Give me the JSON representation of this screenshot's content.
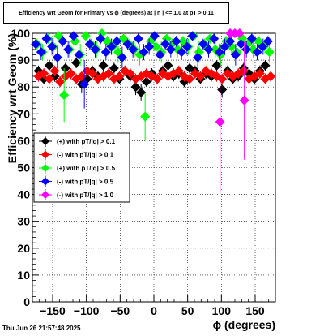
{
  "title": "Efficiency wrt Geom for Primary vs ϕ (degrees) at | η | <= 1.0 at pT > 0.11",
  "date_stamp": "Thu Jun 26 21:57:48 2025",
  "chart_data": {
    "type": "scatter",
    "xlabel": "ϕ (degrees)",
    "ylabel": "Efficiency wrt Geom (%)",
    "xlim": [
      -180,
      180
    ],
    "ylim": [
      0,
      100
    ],
    "xticks": [
      -150,
      -100,
      -50,
      0,
      50,
      100,
      150
    ],
    "yticks": [
      0,
      10,
      20,
      30,
      40,
      50,
      60,
      70,
      80,
      90,
      100
    ],
    "grid": true,
    "legend_position": "center-left",
    "series": [
      {
        "name": "(+) with pT/|q| > 0.1",
        "color": "#000000",
        "x": [
          -171,
          -163,
          -155,
          -147,
          -139,
          -131,
          -123,
          -115,
          -107,
          -99,
          -91,
          -83,
          -75,
          -67,
          -59,
          -51,
          -43,
          -35,
          -27,
          -19,
          -11,
          -3,
          5,
          13,
          21,
          29,
          37,
          45,
          53,
          61,
          69,
          77,
          85,
          93,
          101,
          109,
          117,
          125,
          133,
          141,
          149,
          157,
          165,
          173
        ],
        "y": [
          86,
          83,
          88,
          84,
          82,
          87,
          85,
          89,
          81,
          83,
          86,
          84,
          88,
          85,
          87,
          83,
          86,
          84,
          80,
          78,
          82,
          85,
          83,
          86,
          88,
          84,
          85,
          82,
          87,
          86,
          83,
          85,
          84,
          88,
          79,
          86,
          83,
          84,
          87,
          85,
          83,
          86,
          88,
          84
        ],
        "err": [
          2,
          2,
          2,
          2,
          2,
          2,
          2,
          2,
          3,
          4,
          2,
          2,
          2,
          2,
          2,
          2,
          2,
          2,
          3,
          3,
          2,
          2,
          2,
          2,
          2,
          2,
          2,
          2,
          2,
          2,
          2,
          2,
          2,
          2,
          3,
          2,
          2,
          2,
          2,
          2,
          2,
          2,
          2,
          2
        ]
      },
      {
        "name": "(-) with pT/|q| > 0.1",
        "color": "#ff0000",
        "x": [
          -171,
          -163,
          -155,
          -147,
          -139,
          -131,
          -123,
          -115,
          -107,
          -99,
          -91,
          -83,
          -75,
          -67,
          -59,
          -51,
          -43,
          -35,
          -27,
          -19,
          -11,
          -3,
          5,
          13,
          21,
          29,
          37,
          45,
          53,
          61,
          69,
          77,
          85,
          93,
          101,
          109,
          117,
          125,
          133,
          141,
          149,
          157,
          165,
          173
        ],
        "y": [
          84,
          85,
          83,
          86,
          82,
          84,
          85,
          83,
          84,
          86,
          85,
          83,
          84,
          85,
          83,
          84,
          86,
          85,
          83,
          84,
          85,
          84,
          83,
          85,
          84,
          85,
          86,
          84,
          83,
          85,
          84,
          86,
          85,
          84,
          83,
          85,
          84,
          85,
          86,
          83,
          84,
          85,
          83,
          84
        ],
        "err": [
          2,
          2,
          2,
          2,
          2,
          2,
          2,
          2,
          2,
          2,
          2,
          2,
          2,
          2,
          2,
          2,
          2,
          2,
          2,
          2,
          2,
          2,
          2,
          2,
          2,
          2,
          2,
          2,
          2,
          2,
          2,
          2,
          2,
          2,
          2,
          2,
          2,
          2,
          2,
          2,
          2,
          2,
          2,
          2
        ]
      },
      {
        "name": "(+) with pT/|q| > 0.5",
        "color": "#00ff00",
        "x": [
          -173,
          -165,
          -157,
          -149,
          -141,
          -133,
          -125,
          -117,
          -109,
          -101,
          -93,
          -85,
          -77,
          -69,
          -61,
          -53,
          -45,
          -37,
          -29,
          -21,
          -13,
          -5,
          3,
          11,
          19,
          27,
          35,
          43,
          51,
          59,
          67,
          75,
          83,
          91,
          99,
          107,
          115,
          123,
          131,
          139,
          147,
          155,
          163,
          171
        ],
        "y": [
          96,
          93,
          98,
          95,
          99,
          77,
          94,
          97,
          92,
          99,
          96,
          94,
          100,
          97,
          95,
          93,
          98,
          96,
          94,
          92,
          69,
          97,
          95,
          93,
          98,
          96,
          94,
          97,
          95,
          99,
          93,
          96,
          98,
          94,
          92,
          97,
          95,
          93,
          98,
          96,
          94,
          97,
          95,
          93
        ],
        "err": [
          2,
          3,
          2,
          3,
          1,
          10,
          3,
          2,
          4,
          1,
          2,
          3,
          0,
          2,
          3,
          4,
          2,
          2,
          3,
          4,
          9,
          2,
          3,
          4,
          2,
          2,
          3,
          2,
          3,
          1,
          4,
          2,
          2,
          3,
          4,
          2,
          3,
          4,
          2,
          2,
          3,
          2,
          3,
          4
        ]
      },
      {
        "name": "(-) with pT/|q| > 0.5",
        "color": "#0000ff",
        "x": [
          -175,
          -167,
          -159,
          -151,
          -143,
          -135,
          -127,
          -119,
          -111,
          -103,
          -95,
          -87,
          -79,
          -71,
          -63,
          -55,
          -47,
          -39,
          -31,
          -23,
          -15,
          -7,
          1,
          9,
          17,
          25,
          33,
          41,
          49,
          57,
          65,
          73,
          81,
          89,
          97,
          105,
          113,
          121,
          129,
          137,
          145,
          153,
          161,
          169
        ],
        "y": [
          96,
          93,
          98,
          95,
          91,
          97,
          94,
          99,
          92,
          81,
          96,
          94,
          98,
          93,
          95,
          97,
          91,
          96,
          94,
          98,
          93,
          95,
          99,
          92,
          96,
          94,
          97,
          93,
          95,
          99,
          91,
          96,
          94,
          98,
          93,
          95,
          97,
          92,
          96,
          94,
          98,
          93,
          95,
          97
        ],
        "err": [
          2,
          3,
          2,
          3,
          4,
          2,
          3,
          1,
          4,
          9,
          2,
          3,
          2,
          3,
          3,
          2,
          4,
          2,
          3,
          2,
          3,
          3,
          1,
          4,
          2,
          3,
          2,
          3,
          3,
          1,
          4,
          2,
          3,
          2,
          3,
          3,
          2,
          4,
          2,
          3,
          2,
          3,
          3,
          2
        ]
      },
      {
        "name": "(-) with pT/|q| > 1.0",
        "color": "#ff00ff",
        "x": [
          98,
          113,
          120,
          127,
          134
        ],
        "y": [
          67,
          100,
          100,
          100,
          75
        ],
        "err": [
          27,
          0,
          0,
          0,
          22
        ]
      }
    ]
  }
}
